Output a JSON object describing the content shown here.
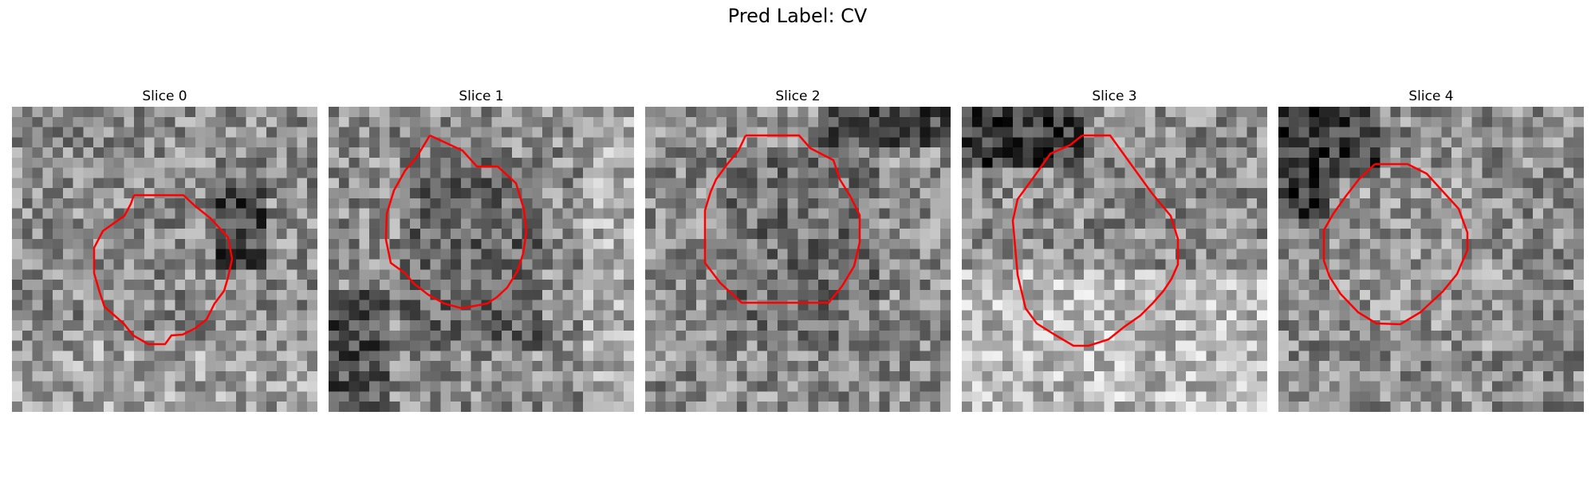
{
  "figure": {
    "title": "Pred Label: CV"
  },
  "slices": [
    {
      "title": "Slice 0"
    },
    {
      "title": "Slice 1"
    },
    {
      "title": "Slice 2"
    },
    {
      "title": "Slice 3"
    },
    {
      "title": "Slice 4"
    }
  ],
  "contour_color": "#ff0000"
}
